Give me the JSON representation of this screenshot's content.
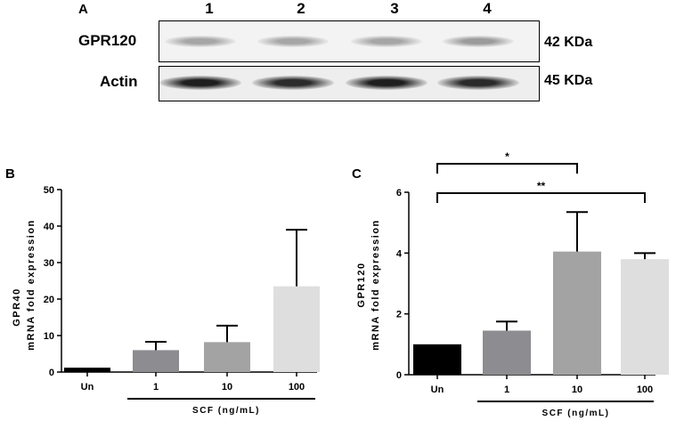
{
  "panels": {
    "a": "A",
    "b": "B",
    "c": "C"
  },
  "blot": {
    "lanes": [
      "1",
      "2",
      "3",
      "4"
    ],
    "rows": [
      {
        "label": "GPR120",
        "size": "42 KDa",
        "intensities": [
          0.35,
          0.35,
          0.35,
          0.4
        ]
      },
      {
        "label": "Actin",
        "size": "45 KDa",
        "intensities": [
          0.95,
          0.9,
          0.95,
          0.9
        ]
      }
    ]
  },
  "colors": {
    "bar_un": "#000000",
    "bar_1": "#8c8c91",
    "bar_10": "#a3a3a3",
    "bar_100": "#dedede"
  },
  "chart_data": [
    {
      "type": "bar",
      "panel": "B",
      "categories": [
        "Un",
        "1",
        "10",
        "100"
      ],
      "values": [
        1.2,
        6.0,
        8.2,
        23.5
      ],
      "errors": [
        0,
        2.3,
        4.5,
        15.5
      ],
      "ylabel_line1": "GPR40",
      "ylabel_line2": "mRNA fold expression",
      "group_label": "SCF (ng/mL)",
      "ylim": [
        0,
        50
      ],
      "yticks": [
        "0",
        "10",
        "20",
        "30",
        "40",
        "50"
      ],
      "significance": []
    },
    {
      "type": "bar",
      "panel": "C",
      "categories": [
        "Un",
        "1",
        "10",
        "100"
      ],
      "values": [
        1.0,
        1.45,
        4.05,
        3.8
      ],
      "errors": [
        0,
        0.3,
        1.3,
        0.2
      ],
      "ylabel_line1": "GPR120",
      "ylabel_line2": "mRNA fold expression",
      "group_label": "SCF (ng/mL)",
      "ylim": [
        0,
        6
      ],
      "yticks": [
        "0",
        "2",
        "4",
        "6"
      ],
      "significance": [
        {
          "from": "Un",
          "to": "10",
          "label": "*"
        },
        {
          "from": "Un",
          "to": "100",
          "label": "**"
        }
      ]
    }
  ]
}
